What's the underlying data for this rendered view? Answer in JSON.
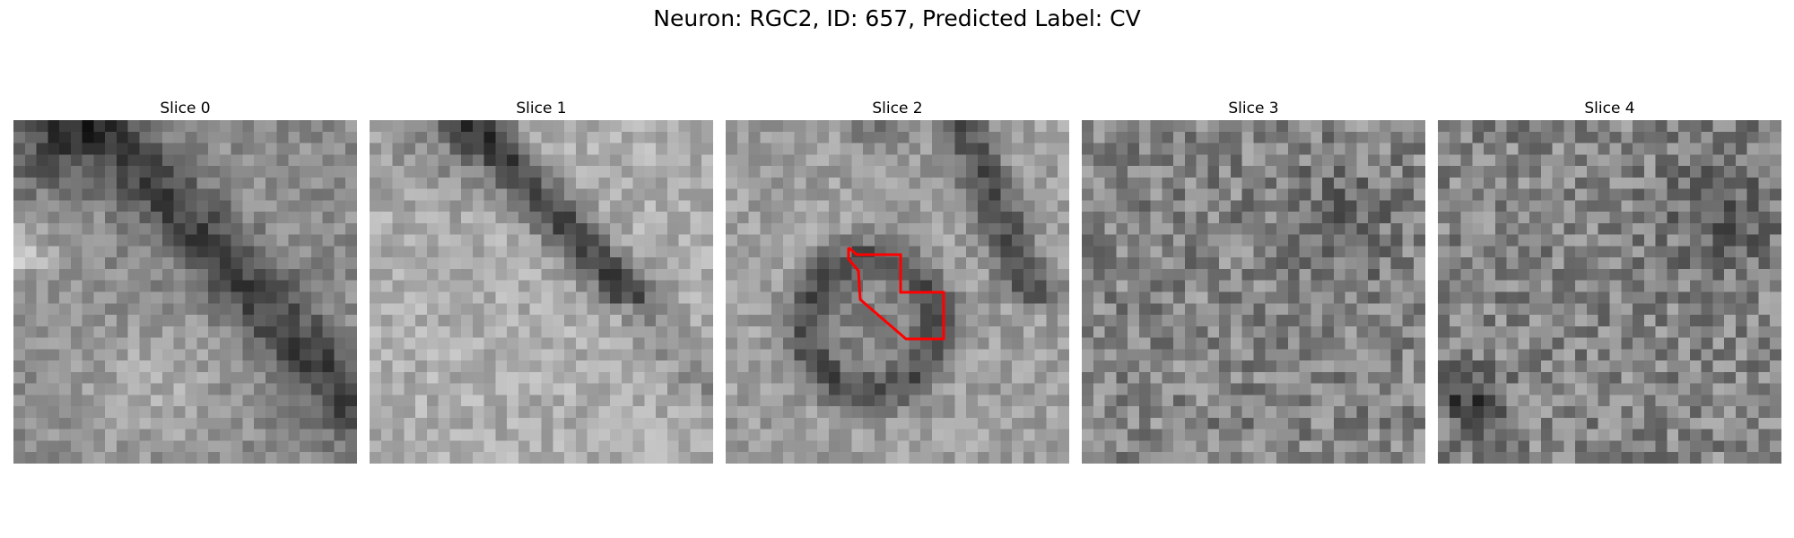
{
  "figure": {
    "title": "Neuron: RGC2, ID: 657, Predicted Label: CV"
  },
  "panels": [
    {
      "label": "Slice 0",
      "seed": 11,
      "pattern": "diagonal-dark-band",
      "outline": false
    },
    {
      "label": "Slice 1",
      "seed": 23,
      "pattern": "bright-with-dark-diagonal",
      "outline": false
    },
    {
      "label": "Slice 2",
      "seed": 37,
      "pattern": "ring",
      "outline": true
    },
    {
      "label": "Slice 3",
      "seed": 51,
      "pattern": "noisy",
      "outline": false
    },
    {
      "label": "Slice 4",
      "seed": 67,
      "pattern": "noisy-dark-corner",
      "outline": false
    }
  ],
  "colors": {
    "outline": "#ff0000"
  }
}
